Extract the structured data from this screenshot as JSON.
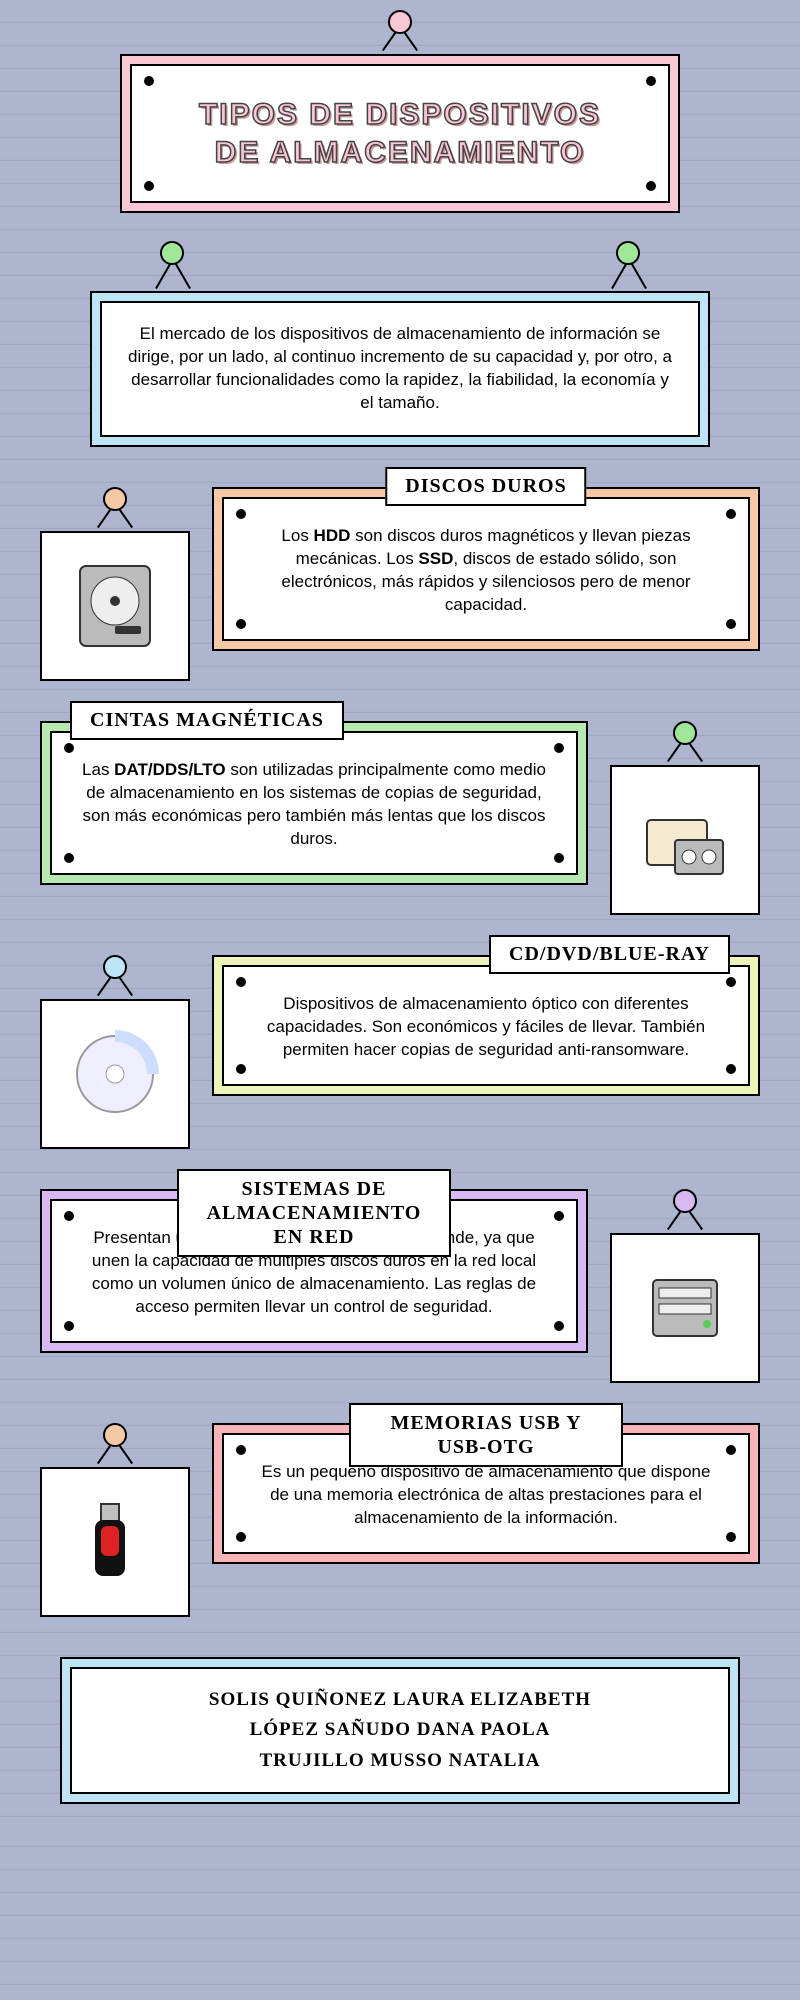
{
  "colors": {
    "background": "#aeb5ce",
    "ruleLine": "#9fa7c4",
    "titleFrame": "#f8c6d5",
    "introFrame": "#bde5f5",
    "authorsFrame": "#bde5f5"
  },
  "title": {
    "line1": "TIPOS DE DISPOSITIVOS",
    "line2": "DE ALMACENAMIENTO",
    "pinColor": "#f8c6d5"
  },
  "intro": {
    "text": "El mercado de los dispositivos de almacenamiento de información se dirige, por un lado, al continuo incremento de su capacidad y, por otro, a desarrollar funcionalidades como la rapidez, la fiabilidad, la economía y el tamaño.",
    "pinLeftColor": "#a0e69a",
    "pinRightColor": "#a0e69a"
  },
  "sections": [
    {
      "id": "hdd",
      "label": "DISCOS DUROS",
      "labelPos": "center",
      "frameColor": "#f6c9a6",
      "pinColor": "#f6c9a6",
      "imageSide": "left",
      "icon": "hdd",
      "body": "Los <b>HDD</b> son discos duros magnéticos y llevan piezas mecánicas. Los <b>SSD</b>, discos de estado sólido, son electrónicos, más rápidos y silenciosos pero de menor capacidad."
    },
    {
      "id": "tape",
      "label": "CINTAS MAGNÉTICAS",
      "labelPos": "left",
      "frameColor": "#b7e8b0",
      "pinColor": "#a0e69a",
      "imageSide": "right",
      "icon": "tape",
      "body": "Las <b>DAT/DDS/LTO</b> son utilizadas principalmente como medio de almacenamiento en los sistemas de copias de seguridad, son más económicas pero también más lentas que los discos duros."
    },
    {
      "id": "optical",
      "label": "CD/DVD/BLUE-RAY",
      "labelPos": "right",
      "frameColor": "#eef3b7",
      "pinColor": "#bde5f5",
      "imageSide": "left",
      "icon": "disc",
      "body": "Dispositivos de almacenamiento óptico con diferentes capacidades. Son económicos y fáciles de llevar. También permiten hacer copias de seguridad anti-ransomware."
    },
    {
      "id": "nas",
      "label": "SISTEMAS DE ALMACENAMIENTO EN RED",
      "labelPos": "wide",
      "frameColor": "#d7b8f0",
      "pinColor": "#d7b8f0",
      "imageSide": "right",
      "icon": "nas",
      "body": "Presentan un volumen de almacenamiento grande, ya que unen la capacidad de múltiples discos duros en la red local como un volumen único de almacenamiento. Las reglas de acceso permiten llevar un control de seguridad."
    },
    {
      "id": "usb",
      "label": "MEMORIAS USB Y USB-OTG",
      "labelPos": "wide",
      "frameColor": "#f6b3b8",
      "pinColor": "#f6c9a6",
      "imageSide": "left",
      "icon": "usb",
      "body": "Es un pequeño dispositivo de almacenamiento que dispone de una memoria electrónica de altas prestaciones para el almacenamiento de la información."
    }
  ],
  "authors": [
    "SOLIS QUIÑONEZ LAURA ELIZABETH",
    "LÓPEZ SAÑUDO DANA PAOLA",
    "TRUJILLO MUSSO NATALIA"
  ]
}
